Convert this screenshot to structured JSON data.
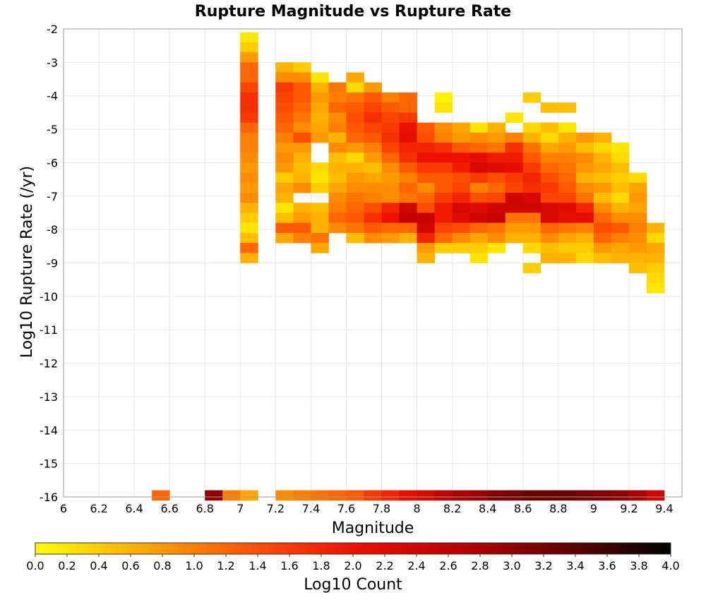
{
  "chart_data": {
    "type": "heatmap",
    "title": "Rupture Magnitude vs Rupture Rate",
    "xlabel": "Magnitude",
    "ylabel": "Log10 Rupture Rate (/yr)",
    "xlim": [
      6.0,
      9.5
    ],
    "ylim": [
      -16,
      -2
    ],
    "x_ticks": [
      "6",
      "6.2",
      "6.4",
      "6.6",
      "6.8",
      "7",
      "7.2",
      "7.4",
      "7.6",
      "7.8",
      "8",
      "8.2",
      "8.4",
      "8.6",
      "8.8",
      "9",
      "9.2",
      "9.4"
    ],
    "y_ticks": [
      "-2",
      "-3",
      "-4",
      "-5",
      "-6",
      "-7",
      "-8",
      "-9",
      "-10",
      "-11",
      "-12",
      "-13",
      "-14",
      "-15",
      "-16"
    ],
    "grid": true,
    "bin_width_mag": 0.1,
    "bin_height_log_rate": 0.3,
    "colorbar": {
      "label": "Log10 Count",
      "range": [
        0.0,
        4.0
      ],
      "ticks": [
        "0.0",
        "0.2",
        "0.4",
        "0.6",
        "0.8",
        "1.0",
        "1.2",
        "1.4",
        "1.6",
        "1.8",
        "2.0",
        "2.2",
        "2.4",
        "2.6",
        "2.8",
        "3.0",
        "3.2",
        "3.4",
        "3.6",
        "3.8",
        "4.0"
      ],
      "colors": [
        "#ffff00",
        "#ffaa00",
        "#ff5500",
        "#ee1100",
        "#bb0000",
        "#660000",
        "#000000"
      ]
    },
    "bottom_row": {
      "note_y": -16,
      "cells": [
        [
          6.55,
          1.2
        ],
        [
          6.85,
          3.0
        ],
        [
          6.95,
          1.0
        ],
        [
          7.05,
          0.7
        ],
        [
          7.25,
          0.9
        ],
        [
          7.35,
          1.0
        ],
        [
          7.45,
          1.1
        ],
        [
          7.55,
          1.2
        ],
        [
          7.65,
          1.3
        ],
        [
          7.75,
          1.6
        ],
        [
          7.85,
          1.8
        ],
        [
          7.95,
          2.1
        ],
        [
          8.05,
          2.3
        ],
        [
          8.15,
          2.6
        ],
        [
          8.25,
          2.8
        ],
        [
          8.35,
          2.9
        ],
        [
          8.45,
          3.1
        ],
        [
          8.55,
          3.2
        ],
        [
          8.65,
          3.3
        ],
        [
          8.75,
          3.3
        ],
        [
          8.85,
          3.3
        ],
        [
          8.95,
          3.2
        ],
        [
          9.05,
          3.1
        ],
        [
          9.15,
          3.0
        ],
        [
          9.25,
          2.8
        ],
        [
          9.35,
          2.4
        ]
      ]
    },
    "columns": [
      {
        "mag": 7.05,
        "y_start": -2.1,
        "values": [
          0.2,
          0.4,
          0.8,
          1.2,
          1.2,
          1.5,
          1.7,
          1.7,
          1.6,
          1.2,
          1.0,
          1.0,
          0.9,
          0.8,
          0.9,
          0.8,
          0.9,
          0.6,
          0.4,
          0.2,
          0.5,
          1.2,
          0.6
        ]
      },
      {
        "mag": 7.25,
        "y_start": -3.0,
        "values": [
          0.6,
          0.9,
          1.6,
          1.5,
          1.4,
          1.3,
          1.2,
          1.0,
          0.8,
          0.9,
          0.8,
          0.4,
          0.7,
          0.6,
          0.2,
          0.5,
          1.3,
          0.7
        ]
      },
      {
        "mag": 7.35,
        "y_start": -3.0,
        "values": [
          0.4,
          0.9,
          1.3,
          1.3,
          1.2,
          1.1,
          0.9,
          1.4,
          0.8,
          0.6,
          0.5,
          0.6,
          0.9,
          null,
          0.6,
          0.8,
          1.3,
          1.0
        ]
      },
      {
        "mag": 7.45,
        "y_start": -3.3,
        "values": [
          0.2,
          0.6,
          0.8,
          0.7,
          0.6,
          0.7,
          0.8,
          null,
          null,
          0.3,
          0.2,
          0.4,
          null,
          0.5,
          0.6,
          0.6,
          1.1,
          0.7
        ]
      },
      {
        "mag": 7.55,
        "y_start": -3.6,
        "values": [
          1.1,
          1.0,
          1.2,
          0.9,
          1.0,
          0.6,
          0.9,
          0.5,
          0.6,
          0.5,
          0.7,
          0.9,
          1.0,
          1.2,
          0.9
        ]
      },
      {
        "mag": 7.65,
        "y_start": -3.3,
        "values": [
          0.7,
          0.3,
          1.1,
          1.3,
          1.4,
          1.3,
          1.2,
          0.8,
          0.3,
          0.6,
          0.8,
          0.9,
          1.1,
          1.2,
          1.3,
          1.1,
          0.5
        ]
      },
      {
        "mag": 7.75,
        "y_start": -3.6,
        "values": [
          0.8,
          1.3,
          1.5,
          1.7,
          1.5,
          1.3,
          1.0,
          0.8,
          0.5,
          0.7,
          0.9,
          1.0,
          1.4,
          1.7,
          1.3,
          0.9
        ]
      },
      {
        "mag": 7.85,
        "y_start": -3.9,
        "values": [
          1.0,
          1.3,
          1.5,
          1.6,
          1.7,
          1.5,
          1.2,
          0.9,
          0.8,
          0.9,
          0.9,
          1.8,
          2.0,
          1.2,
          0.8
        ]
      },
      {
        "mag": 7.95,
        "y_start": -3.9,
        "values": [
          1.2,
          1.2,
          1.6,
          2.0,
          2.1,
          1.8,
          1.7,
          1.3,
          1.0,
          1.2,
          1.1,
          2.4,
          2.6,
          1.2,
          0.6
        ]
      },
      {
        "mag": 8.05,
        "y_start": -4.8,
        "values": [
          1.3,
          1.4,
          1.8,
          2.0,
          1.6,
          1.3,
          0.9,
          1.2,
          1.4,
          2.5,
          2.4,
          1.8,
          0.8,
          0.6
        ]
      },
      {
        "mag": 8.15,
        "y_start": -3.9,
        "values": [
          0.1,
          0.2,
          null,
          0.9,
          1.0,
          1.7,
          2.0,
          1.6,
          1.3,
          1.3,
          1.6,
          1.9,
          1.9,
          1.5,
          1.2,
          0.4
        ]
      },
      {
        "mag": 8.25,
        "y_start": -4.8,
        "values": [
          0.7,
          0.8,
          1.3,
          2.0,
          1.9,
          1.4,
          1.5,
          1.8,
          2.3,
          2.2,
          1.4,
          0.9,
          0.4
        ]
      },
      {
        "mag": 8.35,
        "y_start": -4.8,
        "values": [
          0.2,
          0.9,
          1.2,
          2.1,
          2.3,
          1.6,
          1.0,
          1.4,
          2.2,
          2.4,
          1.2,
          0.7,
          0.4,
          0.2
        ]
      },
      {
        "mag": 8.45,
        "y_start": -4.8,
        "values": [
          0.6,
          0.8,
          1.1,
          1.9,
          2.2,
          1.4,
          1.2,
          1.5,
          2.4,
          2.5,
          1.1,
          0.9,
          0.2
        ]
      },
      {
        "mag": 8.55,
        "y_start": -4.5,
        "values": [
          0.2,
          null,
          1.0,
          1.7,
          1.9,
          2.1,
          1.6,
          1.5,
          2.4,
          2.4,
          1.1,
          0.8,
          0.6
        ]
      },
      {
        "mag": 8.65,
        "y_start": -3.9,
        "values": [
          0.4,
          null,
          null,
          0.3,
          0.6,
          1.1,
          1.3,
          1.6,
          1.8,
          1.7,
          2.3,
          2.4,
          1.1,
          0.8,
          0.6,
          0.3,
          null,
          0.4
        ]
      },
      {
        "mag": 8.75,
        "y_start": -4.2,
        "values": [
          0.5,
          null,
          0.5,
          0.3,
          0.7,
          1.0,
          1.2,
          1.4,
          1.6,
          1.5,
          2.3,
          2.3,
          1.2,
          0.9,
          0.5,
          0.6
        ]
      },
      {
        "mag": 8.85,
        "y_start": -4.2,
        "values": [
          0.5,
          null,
          0.2,
          0.6,
          0.8,
          1.0,
          1.1,
          1.2,
          1.3,
          1.5,
          2.2,
          2.1,
          1.1,
          0.7,
          0.4,
          0.6
        ]
      },
      {
        "mag": 8.95,
        "y_start": -5.1,
        "values": [
          0.8,
          0.5,
          0.9,
          0.8,
          0.6,
          0.9,
          1.1,
          1.8,
          2.1,
          1.0,
          0.6,
          0.4,
          0.3
        ]
      },
      {
        "mag": 9.05,
        "y_start": -5.1,
        "values": [
          0.6,
          0.3,
          0.6,
          0.7,
          0.5,
          0.8,
          0.5,
          0.9,
          1.2,
          1.4,
          1.2,
          0.8,
          0.5
        ]
      },
      {
        "mag": 9.15,
        "y_start": -5.4,
        "values": [
          0.2,
          0.3,
          0.5,
          0.4,
          0.5,
          0.3,
          0.6,
          0.9,
          1.3,
          1.0,
          0.7,
          0.6
        ]
      },
      {
        "mag": 9.25,
        "y_start": -6.3,
        "values": [
          0.3,
          0.7,
          0.8,
          0.7,
          0.9,
          1.0,
          0.9,
          0.8,
          0.6,
          0.5
        ]
      },
      {
        "mag": 9.35,
        "y_start": -7.8,
        "values": [
          0.6,
          0.3,
          0.7,
          0.6,
          0.4,
          0.3,
          0.2
        ]
      }
    ]
  }
}
